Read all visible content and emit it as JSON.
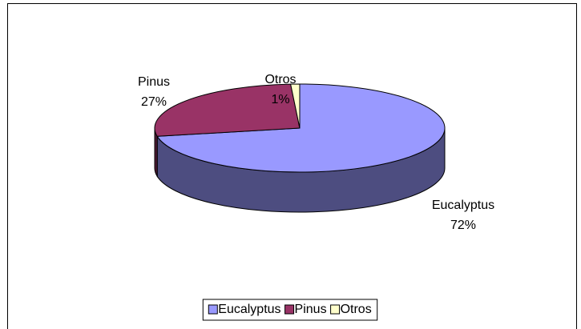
{
  "chart_data": {
    "type": "pie",
    "categories": [
      "Eucalyptus",
      "Pinus",
      "Otros"
    ],
    "values": [
      72,
      27,
      1
    ],
    "value_labels": [
      "72%",
      "27%",
      "1%"
    ],
    "colors": [
      "#9999ff",
      "#993366",
      "#ffffcc"
    ],
    "legend": "bottom"
  }
}
